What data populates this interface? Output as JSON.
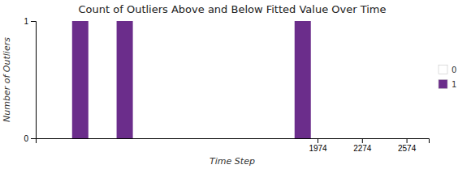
{
  "chart_data": {
    "type": "bar",
    "title": "Count of Outliers Above and Below Fitted Value Over Time",
    "x_label": "Time Step",
    "y_label": "Number of Outliers",
    "x": [
      374,
      674,
      1874
    ],
    "series": [
      {
        "name": "0",
        "color": "#ffffff",
        "values": [
          null,
          null,
          null
        ]
      },
      {
        "name": "1",
        "color": "#6b2d8b",
        "values": [
          1,
          1,
          1
        ]
      }
    ],
    "xlim": [
      74,
      2724
    ],
    "xticks": [
      1974,
      2274,
      2574
    ],
    "ylim": [
      0,
      1
    ],
    "yticks": [
      0,
      1
    ],
    "legend": "right"
  }
}
